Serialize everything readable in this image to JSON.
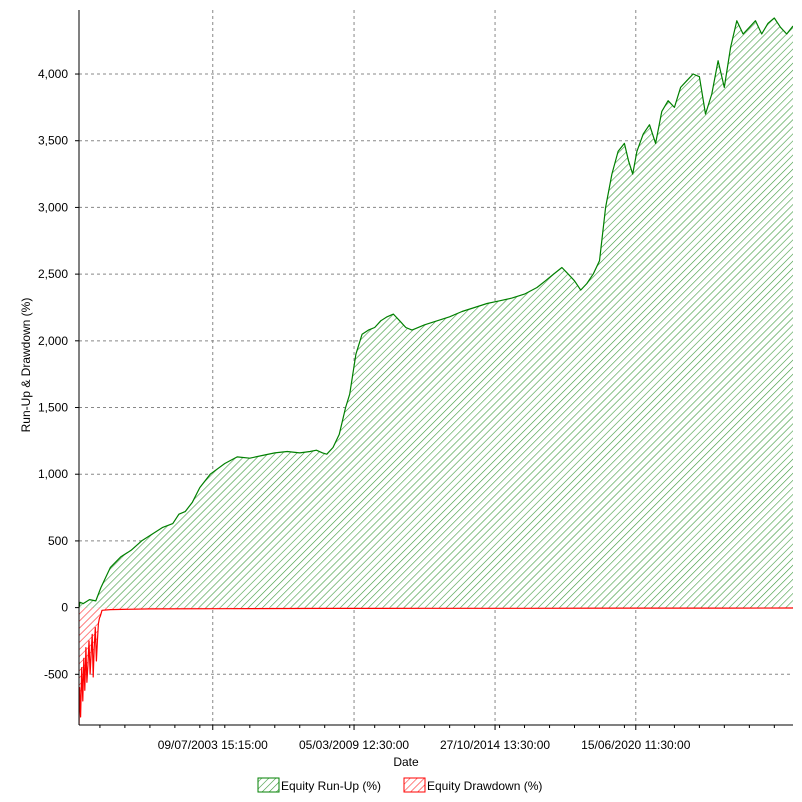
{
  "chart_data": {
    "type": "area",
    "xlabel": "Date",
    "ylabel": "Run-Up & Drawdown (%)",
    "ylim": [
      -880,
      4480
    ],
    "y_ticks": [
      -500,
      0,
      500,
      1000,
      1500,
      2000,
      2500,
      3000,
      3500,
      4000
    ],
    "y_tick_labels": [
      "-500",
      "0",
      "500",
      "1,000",
      "1,500",
      "2,000",
      "2,500",
      "3,000",
      "3,500",
      "4,000"
    ],
    "x_range": [
      "1998-03-01",
      "2026-10-01"
    ],
    "x_ticks": [
      "2003-07-09",
      "2009-03-05",
      "2014-10-27",
      "2020-06-15"
    ],
    "x_tick_labels": [
      "09/07/2003 15:15:00",
      "05/03/2009 12:30:00",
      "27/10/2014 13:30:00",
      "15/06/2020 11:30:00"
    ],
    "grid": true,
    "legend_position": "bottom-center",
    "series": [
      {
        "name": "Equity Run-Up (%)",
        "color": "#008000",
        "fill_pattern": "diagonal-hatch",
        "x": [
          "1998-03-01",
          "1998-03-15",
          "1998-05-01",
          "1998-08-01",
          "1998-11-01",
          "1999-01-15",
          "1999-06-01",
          "1999-11-01",
          "2000-04-01",
          "2000-09-01",
          "2001-02-01",
          "2001-07-01",
          "2001-12-01",
          "2002-03-01",
          "2002-06-01",
          "2002-09-15",
          "2003-01-01",
          "2003-06-01",
          "2004-01-01",
          "2004-07-01",
          "2005-01-01",
          "2005-07-01",
          "2006-01-01",
          "2006-07-01",
          "2007-01-01",
          "2007-06-01",
          "2007-09-01",
          "2007-12-01",
          "2008-02-01",
          "2008-05-01",
          "2008-08-01",
          "2008-11-01",
          "2009-01-01",
          "2009-04-01",
          "2009-07-01",
          "2009-10-01",
          "2010-01-01",
          "2010-04-01",
          "2010-07-01",
          "2010-10-01",
          "2011-01-01",
          "2011-04-01",
          "2011-07-01",
          "2012-01-01",
          "2012-07-01",
          "2013-01-01",
          "2013-07-01",
          "2014-01-01",
          "2014-07-01",
          "2015-01-01",
          "2015-07-01",
          "2016-01-01",
          "2016-07-01",
          "2016-11-01",
          "2017-03-01",
          "2017-07-01",
          "2017-10-01",
          "2018-01-01",
          "2018-04-01",
          "2018-07-01",
          "2018-10-01",
          "2019-01-01",
          "2019-04-01",
          "2019-07-01",
          "2019-10-01",
          "2020-01-01",
          "2020-03-01",
          "2020-05-01",
          "2020-07-01",
          "2020-10-01",
          "2021-01-01",
          "2021-04-01",
          "2021-07-01",
          "2021-10-01",
          "2022-01-01",
          "2022-04-01",
          "2022-07-01",
          "2022-10-01",
          "2023-01-01",
          "2023-04-01",
          "2023-07-01",
          "2023-10-01",
          "2024-01-01",
          "2024-04-01",
          "2024-07-01",
          "2024-10-01",
          "2025-01-01",
          "2025-04-01",
          "2025-07-01",
          "2025-10-01",
          "2026-01-01",
          "2026-04-01",
          "2026-07-01",
          "2026-10-01"
        ],
        "values": [
          0,
          40,
          30,
          60,
          50,
          150,
          300,
          380,
          430,
          500,
          550,
          600,
          630,
          700,
          720,
          790,
          900,
          1000,
          1080,
          1130,
          1120,
          1140,
          1160,
          1170,
          1160,
          1170,
          1180,
          1160,
          1150,
          1200,
          1300,
          1500,
          1600,
          1900,
          2050,
          2080,
          2100,
          2150,
          2180,
          2200,
          2150,
          2100,
          2080,
          2120,
          2150,
          2180,
          2220,
          2250,
          2280,
          2300,
          2320,
          2350,
          2400,
          2450,
          2500,
          2550,
          2500,
          2450,
          2380,
          2430,
          2500,
          2600,
          3000,
          3250,
          3420,
          3480,
          3350,
          3250,
          3420,
          3550,
          3620,
          3480,
          3720,
          3800,
          3750,
          3900,
          3950,
          4000,
          3980,
          3700,
          3850,
          4100,
          3900,
          4200,
          4400,
          4300,
          4350,
          4400,
          4300,
          4380,
          4420,
          4350,
          4300,
          4360
        ]
      },
      {
        "name": "Equity Drawdown (%)",
        "color": "#ff0000",
        "fill_pattern": "diagonal-hatch",
        "x": [
          "1998-03-01",
          "1998-03-10",
          "1998-03-25",
          "1998-04-10",
          "1998-04-25",
          "1998-05-10",
          "1998-05-25",
          "1998-06-10",
          "1998-06-25",
          "1998-07-10",
          "1998-07-25",
          "1998-08-10",
          "1998-08-25",
          "1998-09-10",
          "1998-09-25",
          "1998-10-10",
          "1998-10-25",
          "1998-11-10",
          "1998-11-25",
          "1998-12-10",
          "1998-12-25",
          "1999-01-10",
          "1999-02-01",
          "1999-06-01",
          "2001-01-01",
          "2004-01-01",
          "2008-01-01",
          "2012-01-01",
          "2016-01-01",
          "2020-01-01",
          "2024-01-01",
          "2026-10-01"
        ],
        "values": [
          -880,
          -600,
          -820,
          -450,
          -700,
          -380,
          -620,
          -300,
          -560,
          -420,
          -250,
          -500,
          -350,
          -200,
          -520,
          -300,
          -150,
          -400,
          -250,
          -120,
          -80,
          -60,
          -20,
          -15,
          -10,
          -8,
          -6,
          -5,
          -5,
          -4,
          -4,
          -3
        ]
      }
    ]
  }
}
